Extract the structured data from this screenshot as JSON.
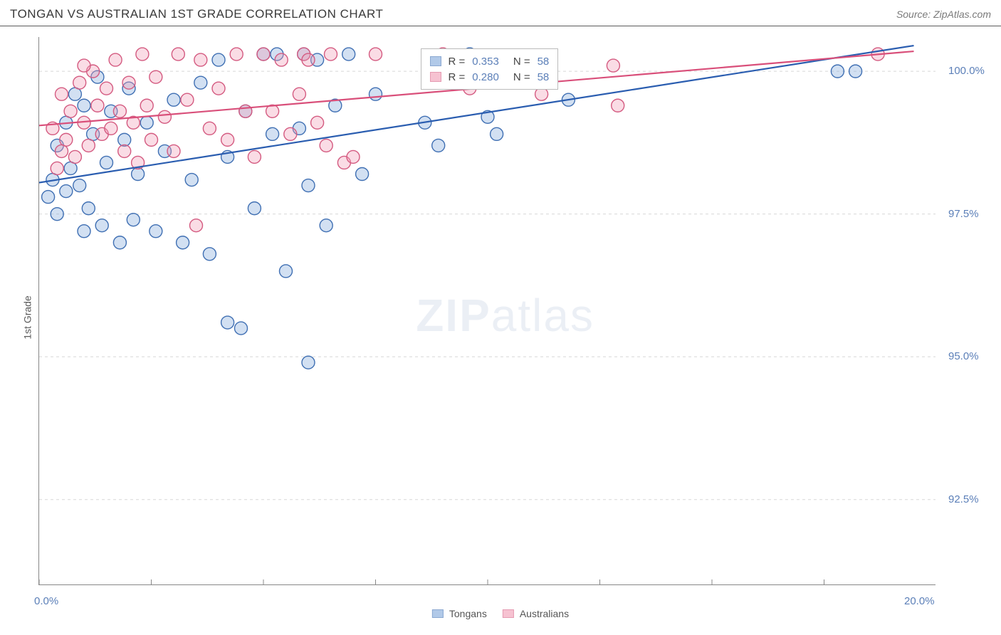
{
  "title": "TONGAN VS AUSTRALIAN 1ST GRADE CORRELATION CHART",
  "source": "Source: ZipAtlas.com",
  "ylabel": "1st Grade",
  "watermark": {
    "bold": "ZIP",
    "rest": "atlas"
  },
  "chart": {
    "type": "scatter",
    "xlim": [
      0,
      20
    ],
    "ylim": [
      91.0,
      100.6
    ],
    "xticks": [
      0,
      2.5,
      5,
      7.5,
      10,
      12.5,
      15,
      17.5,
      20
    ],
    "xtick_labels": {
      "0": "0.0%",
      "20": "20.0%"
    },
    "yticks": [
      92.5,
      95.0,
      97.5,
      100.0
    ],
    "ytick_labels": [
      "92.5%",
      "95.0%",
      "97.5%",
      "100.0%"
    ],
    "grid_color": "#d8d8d8",
    "axis_color": "#888888",
    "background_color": "#ffffff",
    "marker_radius": 9,
    "marker_stroke_width": 1.4,
    "trend_line_width": 2.2,
    "series": [
      {
        "name": "Tongans",
        "fill": "#7ea6d9",
        "fill_opacity": 0.35,
        "stroke": "#3f6fb3",
        "line_color": "#2a5db0",
        "R": "0.353",
        "N": "58",
        "trend": {
          "x0": 0,
          "y0": 98.05,
          "x1": 19.5,
          "y1": 100.45
        },
        "points": [
          [
            0.2,
            97.8
          ],
          [
            0.4,
            97.5
          ],
          [
            0.4,
            98.7
          ],
          [
            0.6,
            97.9
          ],
          [
            0.6,
            99.1
          ],
          [
            0.7,
            98.3
          ],
          [
            0.8,
            99.6
          ],
          [
            0.9,
            98.0
          ],
          [
            1.0,
            99.4
          ],
          [
            1.1,
            97.6
          ],
          [
            1.2,
            98.9
          ],
          [
            1.3,
            99.9
          ],
          [
            1.4,
            97.3
          ],
          [
            1.5,
            98.4
          ],
          [
            1.6,
            99.3
          ],
          [
            1.8,
            97.0
          ],
          [
            1.9,
            98.8
          ],
          [
            2.0,
            99.7
          ],
          [
            2.1,
            97.4
          ],
          [
            2.2,
            98.2
          ],
          [
            2.4,
            99.1
          ],
          [
            2.6,
            97.2
          ],
          [
            2.8,
            98.6
          ],
          [
            3.0,
            99.5
          ],
          [
            3.2,
            97.0
          ],
          [
            3.4,
            98.1
          ],
          [
            3.6,
            99.8
          ],
          [
            3.8,
            96.8
          ],
          [
            4.0,
            100.2
          ],
          [
            4.2,
            98.5
          ],
          [
            4.2,
            95.6
          ],
          [
            4.5,
            95.5
          ],
          [
            4.6,
            99.3
          ],
          [
            4.8,
            97.6
          ],
          [
            5.0,
            100.3
          ],
          [
            5.2,
            98.9
          ],
          [
            5.3,
            100.3
          ],
          [
            5.5,
            96.5
          ],
          [
            5.8,
            99.0
          ],
          [
            5.9,
            100.3
          ],
          [
            6.0,
            94.9
          ],
          [
            6.0,
            98.0
          ],
          [
            6.2,
            100.2
          ],
          [
            6.4,
            97.3
          ],
          [
            6.6,
            99.4
          ],
          [
            6.9,
            100.3
          ],
          [
            7.2,
            98.2
          ],
          [
            7.5,
            99.6
          ],
          [
            8.6,
            99.1
          ],
          [
            8.9,
            98.7
          ],
          [
            9.6,
            100.3
          ],
          [
            10.0,
            99.2
          ],
          [
            10.2,
            98.9
          ],
          [
            11.8,
            99.5
          ],
          [
            17.8,
            100.0
          ],
          [
            18.2,
            100.0
          ],
          [
            0.3,
            98.1
          ],
          [
            1.0,
            97.2
          ]
        ]
      },
      {
        "name": "Australians",
        "fill": "#f19ab4",
        "fill_opacity": 0.35,
        "stroke": "#d45a80",
        "line_color": "#d94f7a",
        "R": "0.280",
        "N": "58",
        "trend": {
          "x0": 0,
          "y0": 99.05,
          "x1": 19.5,
          "y1": 100.35
        },
        "points": [
          [
            0.3,
            99.0
          ],
          [
            0.4,
            98.3
          ],
          [
            0.5,
            99.6
          ],
          [
            0.6,
            98.8
          ],
          [
            0.7,
            99.3
          ],
          [
            0.8,
            98.5
          ],
          [
            0.9,
            99.8
          ],
          [
            1.0,
            99.1
          ],
          [
            1.1,
            98.7
          ],
          [
            1.2,
            100.0
          ],
          [
            1.3,
            99.4
          ],
          [
            1.4,
            98.9
          ],
          [
            1.5,
            99.7
          ],
          [
            1.6,
            99.0
          ],
          [
            1.7,
            100.2
          ],
          [
            1.8,
            99.3
          ],
          [
            1.9,
            98.6
          ],
          [
            2.0,
            99.8
          ],
          [
            2.1,
            99.1
          ],
          [
            2.2,
            98.4
          ],
          [
            2.3,
            100.3
          ],
          [
            2.4,
            99.4
          ],
          [
            2.5,
            98.8
          ],
          [
            2.6,
            99.9
          ],
          [
            2.8,
            99.2
          ],
          [
            3.0,
            98.6
          ],
          [
            3.1,
            100.3
          ],
          [
            3.3,
            99.5
          ],
          [
            3.5,
            97.3
          ],
          [
            3.6,
            100.2
          ],
          [
            3.8,
            99.0
          ],
          [
            4.0,
            99.7
          ],
          [
            4.2,
            98.8
          ],
          [
            4.4,
            100.3
          ],
          [
            4.6,
            99.3
          ],
          [
            4.8,
            98.5
          ],
          [
            5.0,
            100.3
          ],
          [
            5.2,
            99.3
          ],
          [
            5.4,
            100.2
          ],
          [
            5.6,
            98.9
          ],
          [
            5.8,
            99.6
          ],
          [
            5.9,
            100.3
          ],
          [
            6.0,
            100.2
          ],
          [
            6.2,
            99.1
          ],
          [
            6.4,
            98.7
          ],
          [
            6.5,
            100.3
          ],
          [
            6.8,
            98.4
          ],
          [
            7.0,
            98.5
          ],
          [
            7.5,
            100.3
          ],
          [
            9.0,
            100.3
          ],
          [
            9.6,
            99.7
          ],
          [
            10.4,
            100.2
          ],
          [
            11.2,
            99.6
          ],
          [
            12.8,
            100.1
          ],
          [
            12.9,
            99.4
          ],
          [
            18.7,
            100.3
          ],
          [
            0.5,
            98.6
          ],
          [
            1.0,
            100.1
          ]
        ]
      }
    ],
    "legend_bottom": [
      "Tongans",
      "Australians"
    ]
  }
}
